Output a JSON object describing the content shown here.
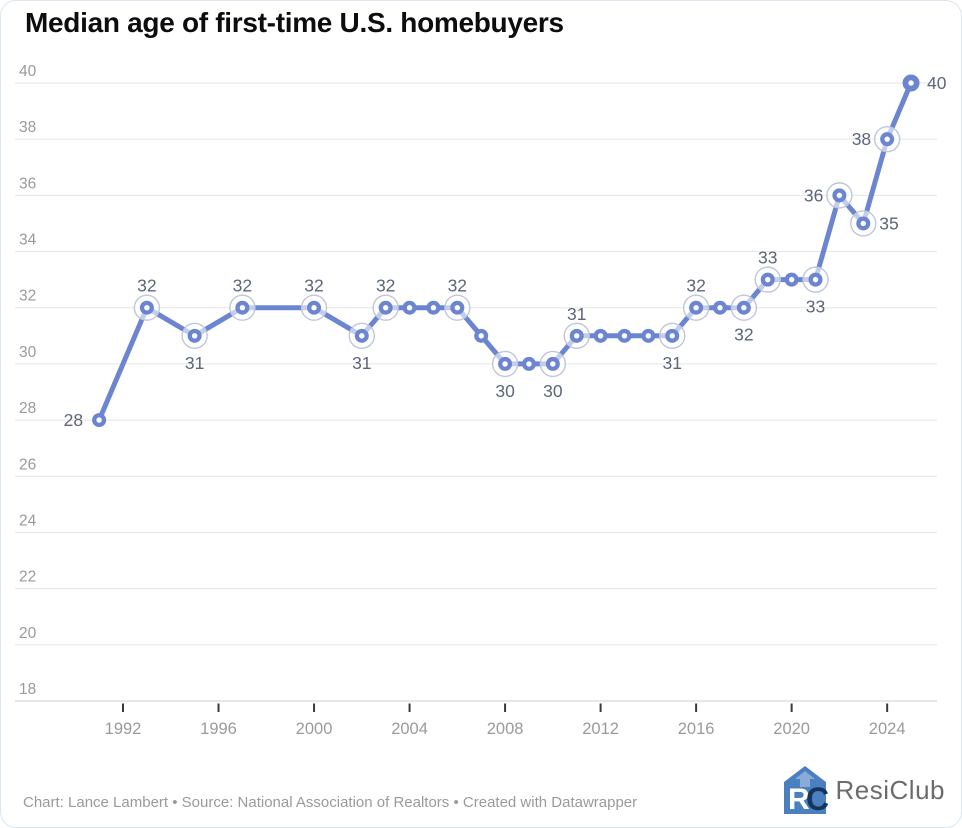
{
  "chart_data": {
    "type": "line",
    "title": "Median age of first-time U.S. homebuyers",
    "x_ticks": [
      1992,
      1996,
      2000,
      2004,
      2008,
      2012,
      2016,
      2020,
      2024
    ],
    "y_ticks": [
      18,
      20,
      22,
      24,
      26,
      28,
      30,
      32,
      34,
      36,
      38,
      40
    ],
    "ylim": [
      18,
      40
    ],
    "xlim": [
      1991,
      2025
    ],
    "grid": "horizontal",
    "legend_position": "none",
    "points": [
      {
        "year": 1991,
        "value": 28,
        "label": "28",
        "label_pos": "left",
        "ring": false
      },
      {
        "year": 1993,
        "value": 32,
        "label": "32",
        "label_pos": "above",
        "ring": true
      },
      {
        "year": 1995,
        "value": 31,
        "label": "31",
        "label_pos": "below",
        "ring": true
      },
      {
        "year": 1997,
        "value": 32,
        "label": "32",
        "label_pos": "above",
        "ring": true
      },
      {
        "year": 2000,
        "value": 32,
        "label": "32",
        "label_pos": "above",
        "ring": true
      },
      {
        "year": 2002,
        "value": 31,
        "label": "31",
        "label_pos": "below",
        "ring": true
      },
      {
        "year": 2003,
        "value": 32,
        "label": "32",
        "label_pos": "above",
        "ring": true
      },
      {
        "year": 2004,
        "value": 32,
        "ring": false
      },
      {
        "year": 2005,
        "value": 32,
        "ring": false
      },
      {
        "year": 2006,
        "value": 32,
        "label": "32",
        "label_pos": "above",
        "ring": true
      },
      {
        "year": 2007,
        "value": 31,
        "ring": false
      },
      {
        "year": 2008,
        "value": 30,
        "label": "30",
        "label_pos": "below",
        "ring": true
      },
      {
        "year": 2009,
        "value": 30,
        "ring": false
      },
      {
        "year": 2010,
        "value": 30,
        "label": "30",
        "label_pos": "below",
        "ring": true
      },
      {
        "year": 2011,
        "value": 31,
        "label": "31",
        "label_pos": "above",
        "ring": true
      },
      {
        "year": 2012,
        "value": 31,
        "ring": false
      },
      {
        "year": 2013,
        "value": 31,
        "ring": false
      },
      {
        "year": 2014,
        "value": 31,
        "ring": false
      },
      {
        "year": 2015,
        "value": 31,
        "label": "31",
        "label_pos": "below",
        "ring": true
      },
      {
        "year": 2016,
        "value": 32,
        "label": "32",
        "label_pos": "above",
        "ring": true
      },
      {
        "year": 2017,
        "value": 32,
        "ring": false
      },
      {
        "year": 2018,
        "value": 32,
        "label": "32",
        "label_pos": "below",
        "ring": true
      },
      {
        "year": 2019,
        "value": 33,
        "label": "33",
        "label_pos": "above",
        "ring": true
      },
      {
        "year": 2020,
        "value": 33,
        "ring": false
      },
      {
        "year": 2021,
        "value": 33,
        "label": "33",
        "label_pos": "below",
        "ring": true
      },
      {
        "year": 2022,
        "value": 36,
        "label": "36",
        "label_pos": "left",
        "ring": true
      },
      {
        "year": 2023,
        "value": 35,
        "label": "35",
        "label_pos": "right",
        "ring": true
      },
      {
        "year": 2024,
        "value": 38,
        "label": "38",
        "label_pos": "left",
        "ring": true
      },
      {
        "year": 2025,
        "value": 40,
        "label": "40",
        "label_pos": "right",
        "ring": false,
        "big": true
      }
    ],
    "colors": {
      "line": "#6b85d0",
      "marker_hole": "#ffffff",
      "ring_stroke": "#bdc7d9",
      "data_label": "#5c6679",
      "axis_label": "#9a9a9a",
      "grid_line": "#e5e5e5",
      "baseline": "#cfcfcf",
      "tick_mark": "#3a3a3a"
    }
  },
  "footer": {
    "credit": "Chart: Lance Lambert • Source: National Association of Realtors • Created with Datawrapper",
    "logo_text": "ResiClub",
    "logo_colors": {
      "house": "#4a7fc0",
      "letter_r": "#ffffff",
      "letter_c": "#16355c"
    }
  }
}
